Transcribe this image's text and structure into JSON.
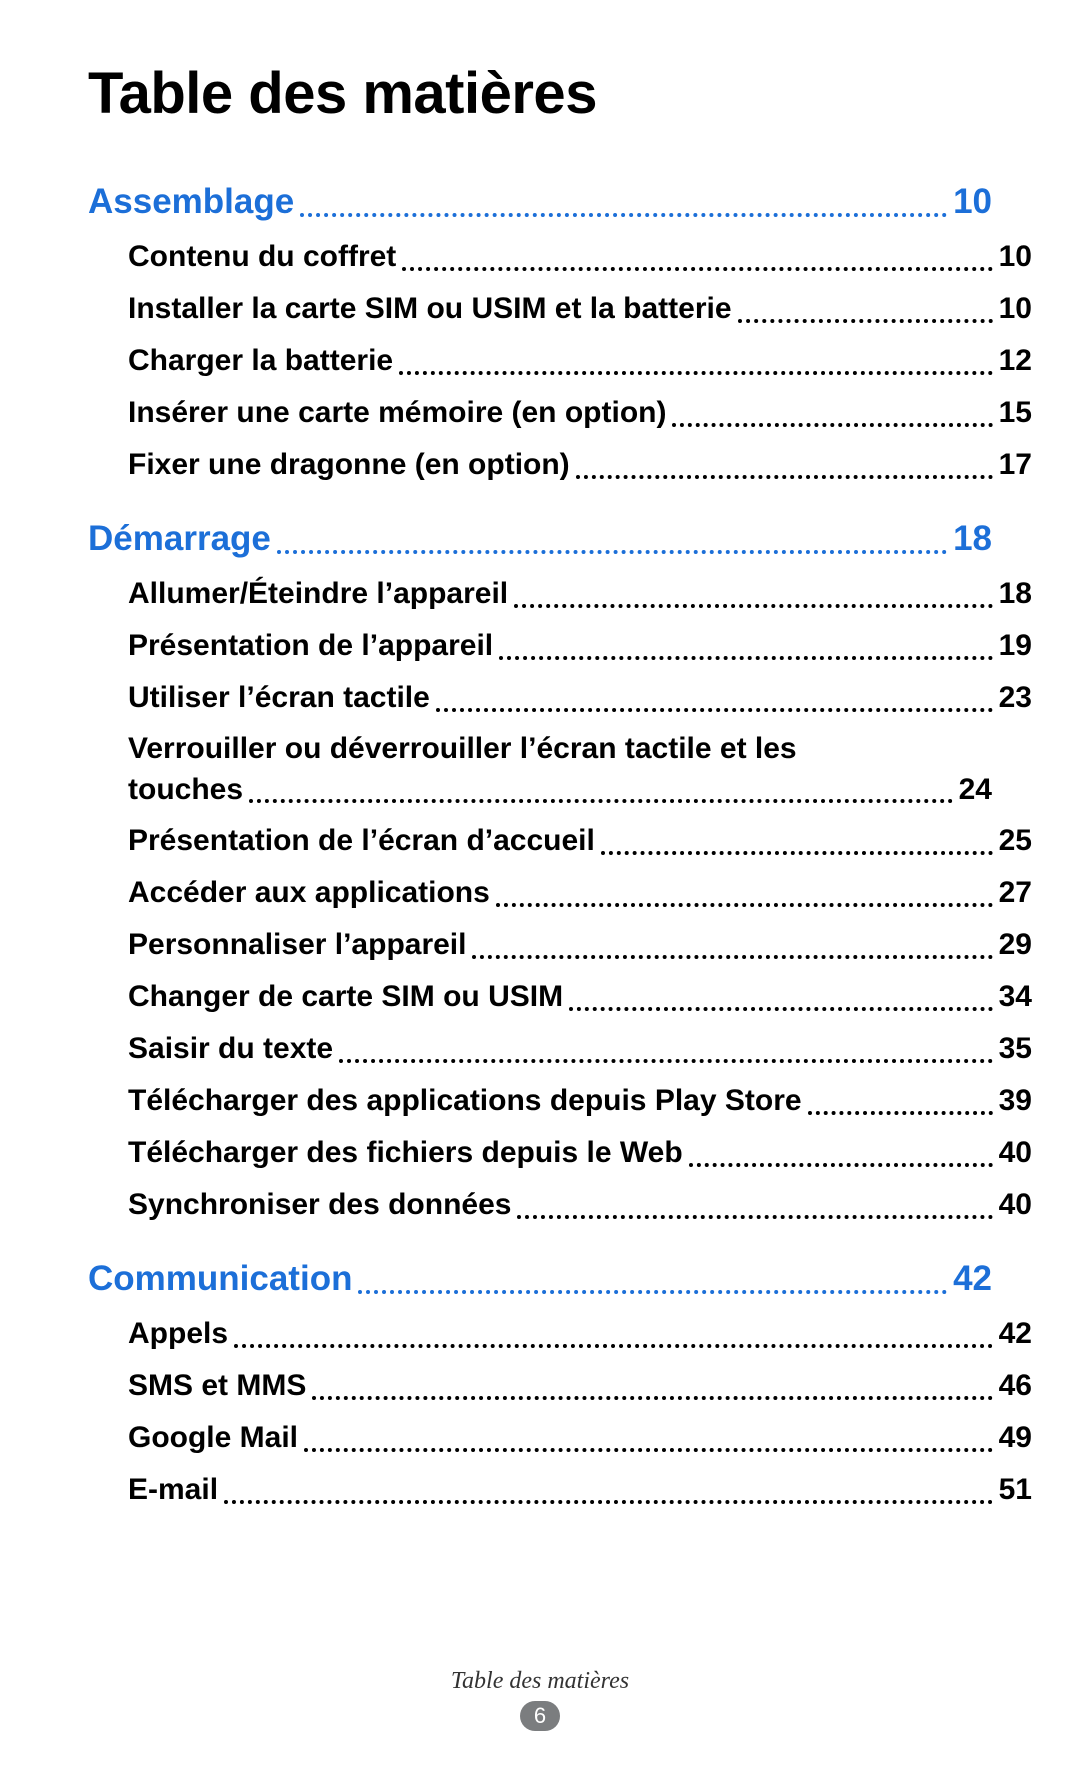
{
  "title": "Table des matières",
  "footer_label": "Table des matières",
  "page_number": "6",
  "accent_color": "#1c6fd8",
  "text_color": "#000000",
  "background_color": "#ffffff",
  "fonts": {
    "body_family": "Myriad Pro / Segoe UI / Helvetica Neue",
    "footer_family": "Georgia (italic)",
    "title_size_pt": 44,
    "section_size_pt": 26,
    "sub_size_pt": 22
  },
  "sections": [
    {
      "title": "Assemblage",
      "page": "10",
      "items": [
        {
          "label": "Contenu du coffret",
          "page": "10"
        },
        {
          "label": "Installer la carte SIM ou USIM et la batterie",
          "page": "10"
        },
        {
          "label": "Charger la batterie",
          "page": "12"
        },
        {
          "label": "Insérer une carte mémoire (en option)",
          "page": "15"
        },
        {
          "label": "Fixer une dragonne (en option)",
          "page": "17"
        }
      ]
    },
    {
      "title": "Démarrage",
      "page": "18",
      "items": [
        {
          "label": "Allumer/Éteindre l’appareil",
          "page": "18"
        },
        {
          "label": "Présentation de l’appareil",
          "page": "19"
        },
        {
          "label": "Utiliser l’écran tactile",
          "page": "23"
        },
        {
          "label_line1": "Verrouiller ou déverrouiller l’écran tactile et les",
          "label_line2": "touches",
          "page": "24",
          "multiline": true
        },
        {
          "label": "Présentation de l’écran d’accueil",
          "page": "25"
        },
        {
          "label": "Accéder aux applications",
          "page": "27"
        },
        {
          "label": "Personnaliser l’appareil",
          "page": "29"
        },
        {
          "label": "Changer de carte SIM ou USIM",
          "page": "34"
        },
        {
          "label": "Saisir du texte",
          "page": "35"
        },
        {
          "label": "Télécharger des applications depuis Play Store",
          "page": "39"
        },
        {
          "label": "Télécharger des fichiers depuis le Web",
          "page": "40"
        },
        {
          "label": "Synchroniser des données",
          "page": "40"
        }
      ]
    },
    {
      "title": "Communication",
      "page": "42",
      "items": [
        {
          "label": "Appels",
          "page": "42"
        },
        {
          "label": "SMS et MMS",
          "page": "46"
        },
        {
          "label": "Google Mail",
          "page": "49"
        },
        {
          "label": "E-mail",
          "page": "51"
        }
      ]
    }
  ]
}
